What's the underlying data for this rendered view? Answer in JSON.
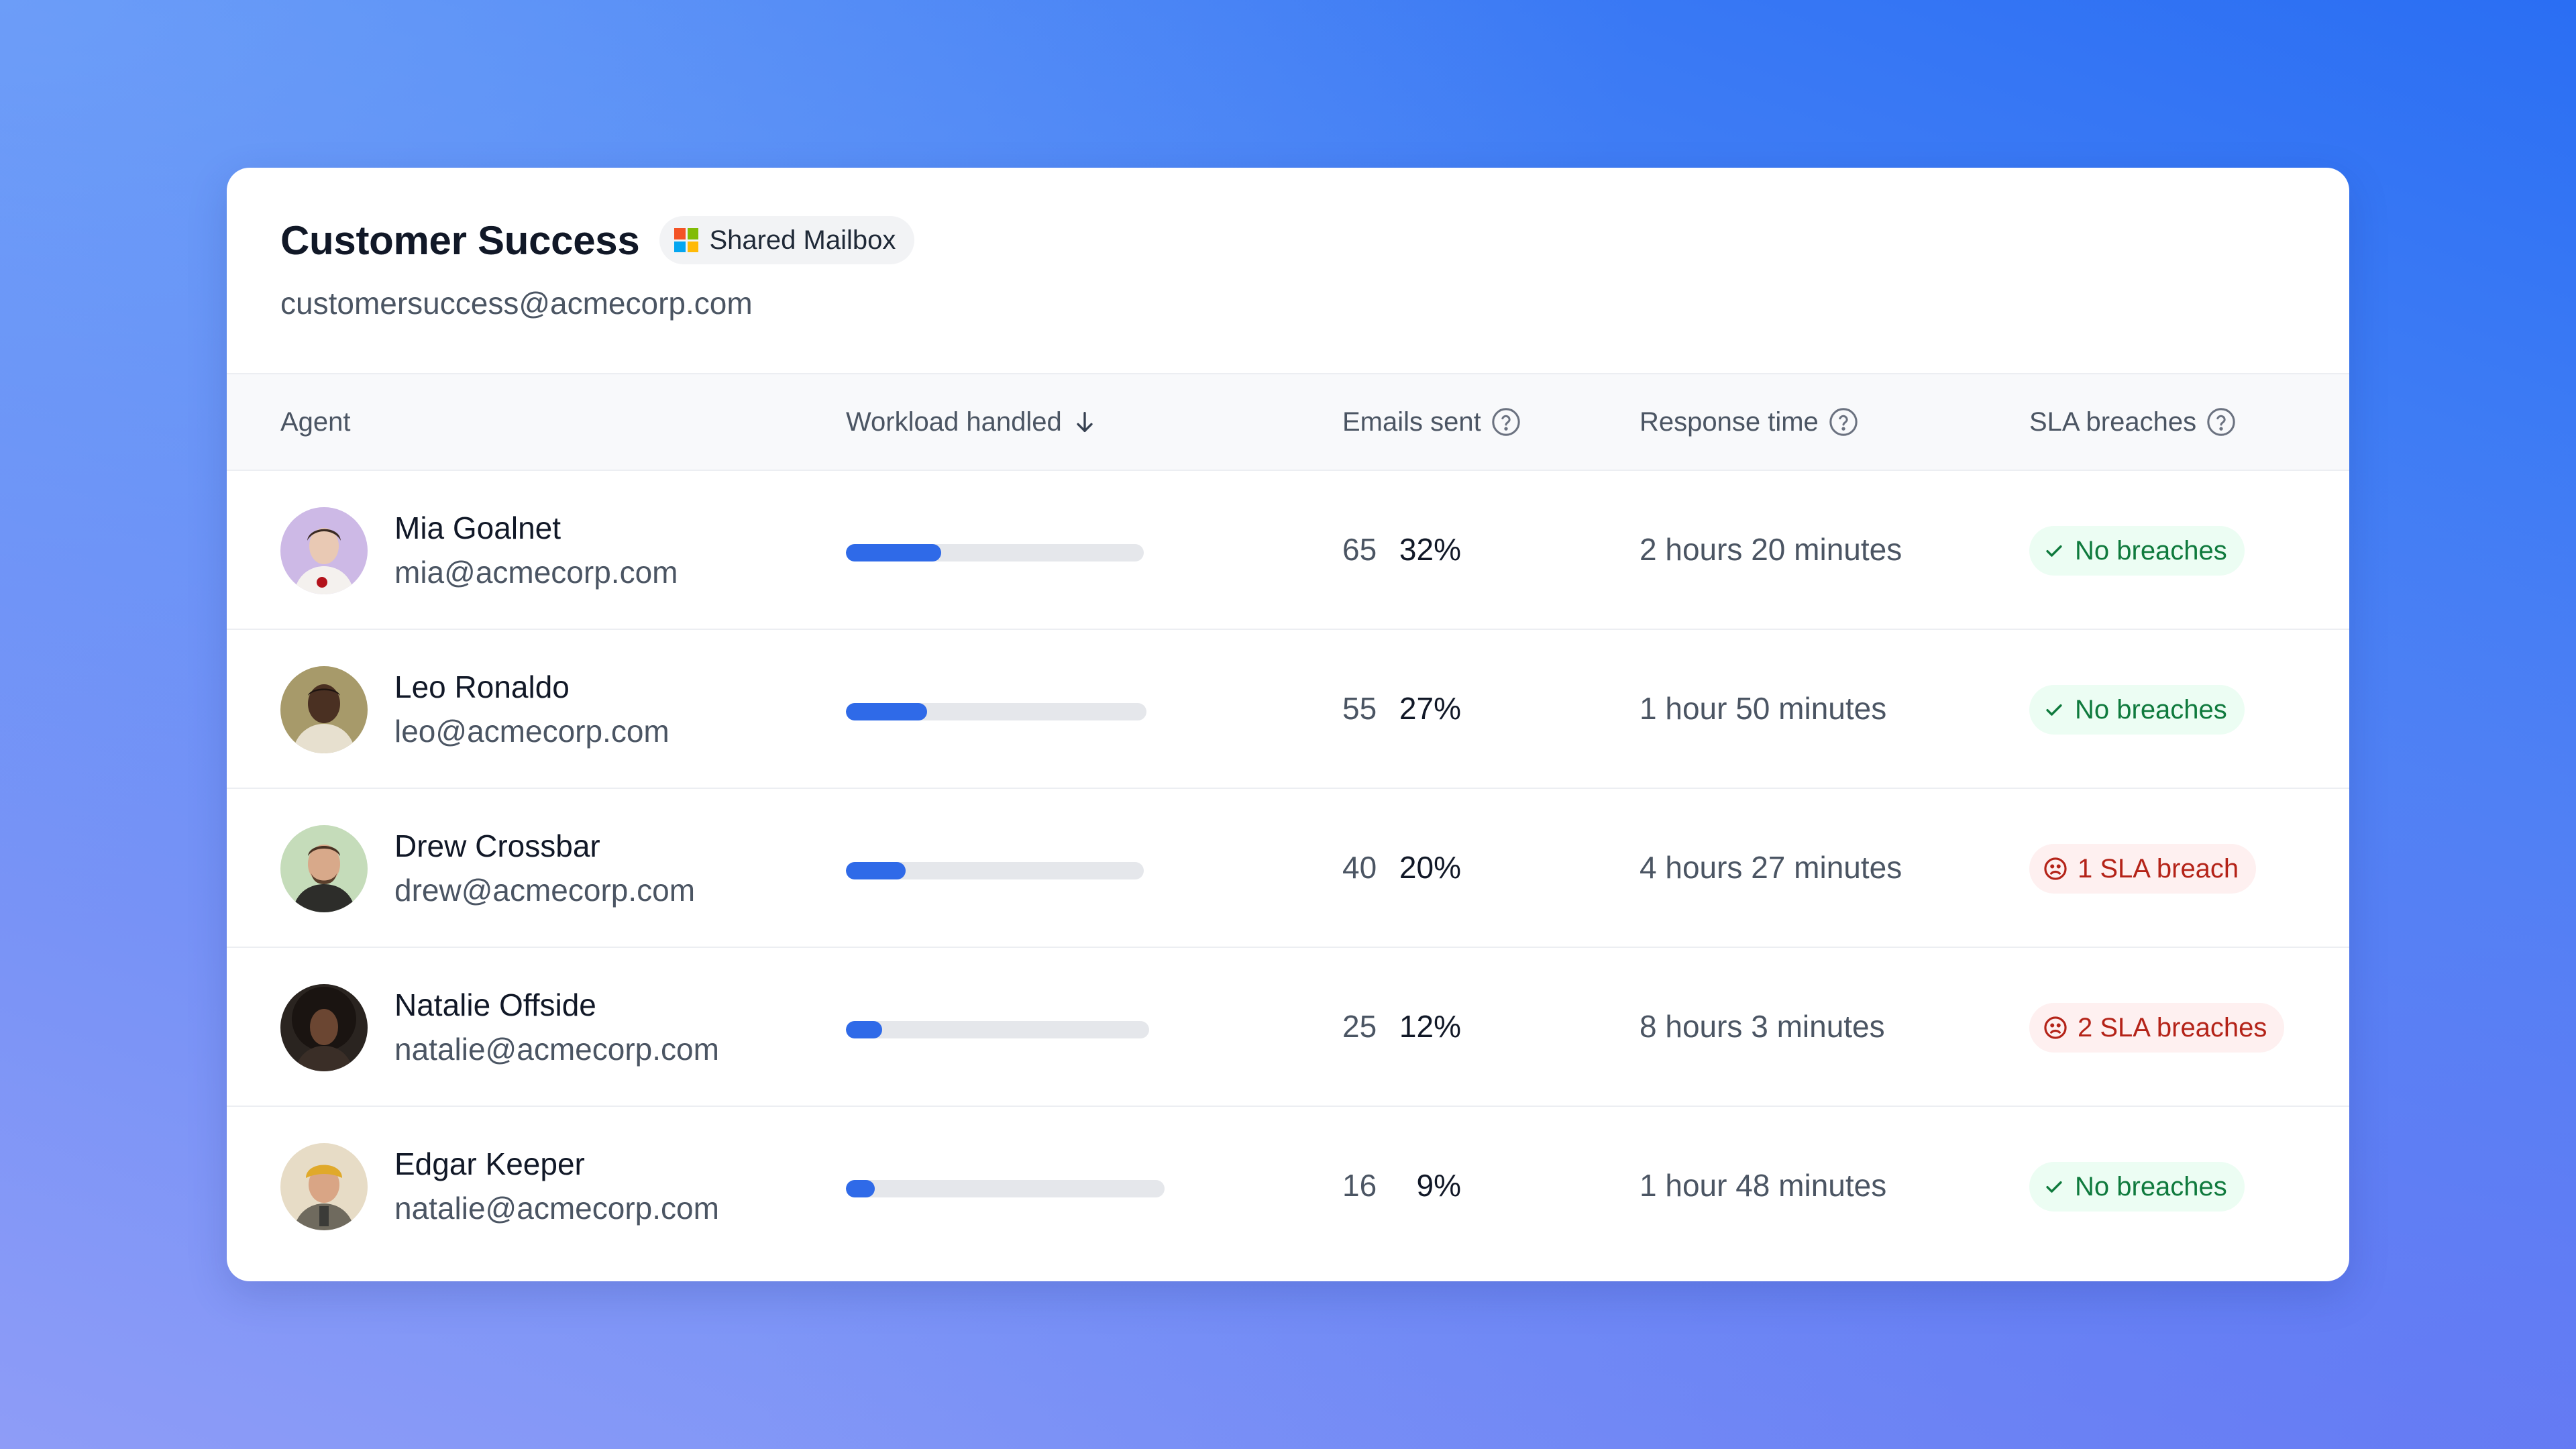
{
  "header": {
    "title": "Customer Success",
    "badge_label": "Shared Mailbox",
    "email": "customersuccess@acmecorp.com"
  },
  "columns": {
    "agent": "Agent",
    "workload": "Workload handled",
    "emails_sent": "Emails sent",
    "response_time": "Response time",
    "sla_breaches": "SLA breaches"
  },
  "colors": {
    "accent": "#2f6ae8",
    "ok_text": "#0f7a3d",
    "ok_bg": "#ecfdf3",
    "bad_text": "#b42318",
    "bad_bg": "#fef0f0"
  },
  "rows": [
    {
      "name": "Mia Goalnet",
      "email": "mia@acmecorp.com",
      "workload": 0.32,
      "workload_label": "32%",
      "emails": "65",
      "response": "2 hours 20 minutes",
      "sla_status": "ok",
      "sla_label": "No breaches",
      "avatar_icon": "avatar-photo"
    },
    {
      "name": "Leo Ronaldo",
      "email": "leo@acmecorp.com",
      "workload": 0.27,
      "workload_label": "27%",
      "emails": "55",
      "response": "1 hour 50 minutes",
      "sla_status": "ok",
      "sla_label": "No breaches",
      "avatar_icon": "avatar-photo"
    },
    {
      "name": "Drew Crossbar",
      "email": "drew@acmecorp.com",
      "workload": 0.2,
      "workload_label": "20%",
      "emails": "40",
      "response": "4 hours 27 minutes",
      "sla_status": "bad",
      "sla_label": "1 SLA breach",
      "avatar_icon": "avatar-photo"
    },
    {
      "name": "Natalie Offside",
      "email": "natalie@acmecorp.com",
      "workload": 0.12,
      "workload_label": "12%",
      "emails": "25",
      "response": "8 hours 3 minutes",
      "sla_status": "bad",
      "sla_label": "2 SLA breaches",
      "avatar_icon": "avatar-photo"
    },
    {
      "name": "Edgar Keeper",
      "email": "natalie@acmecorp.com",
      "workload": 0.09,
      "workload_label": "9%",
      "emails": "16",
      "response": "1 hour 48 minutes",
      "sla_status": "ok",
      "sla_label": "No breaches",
      "avatar_icon": "avatar-photo"
    }
  ]
}
